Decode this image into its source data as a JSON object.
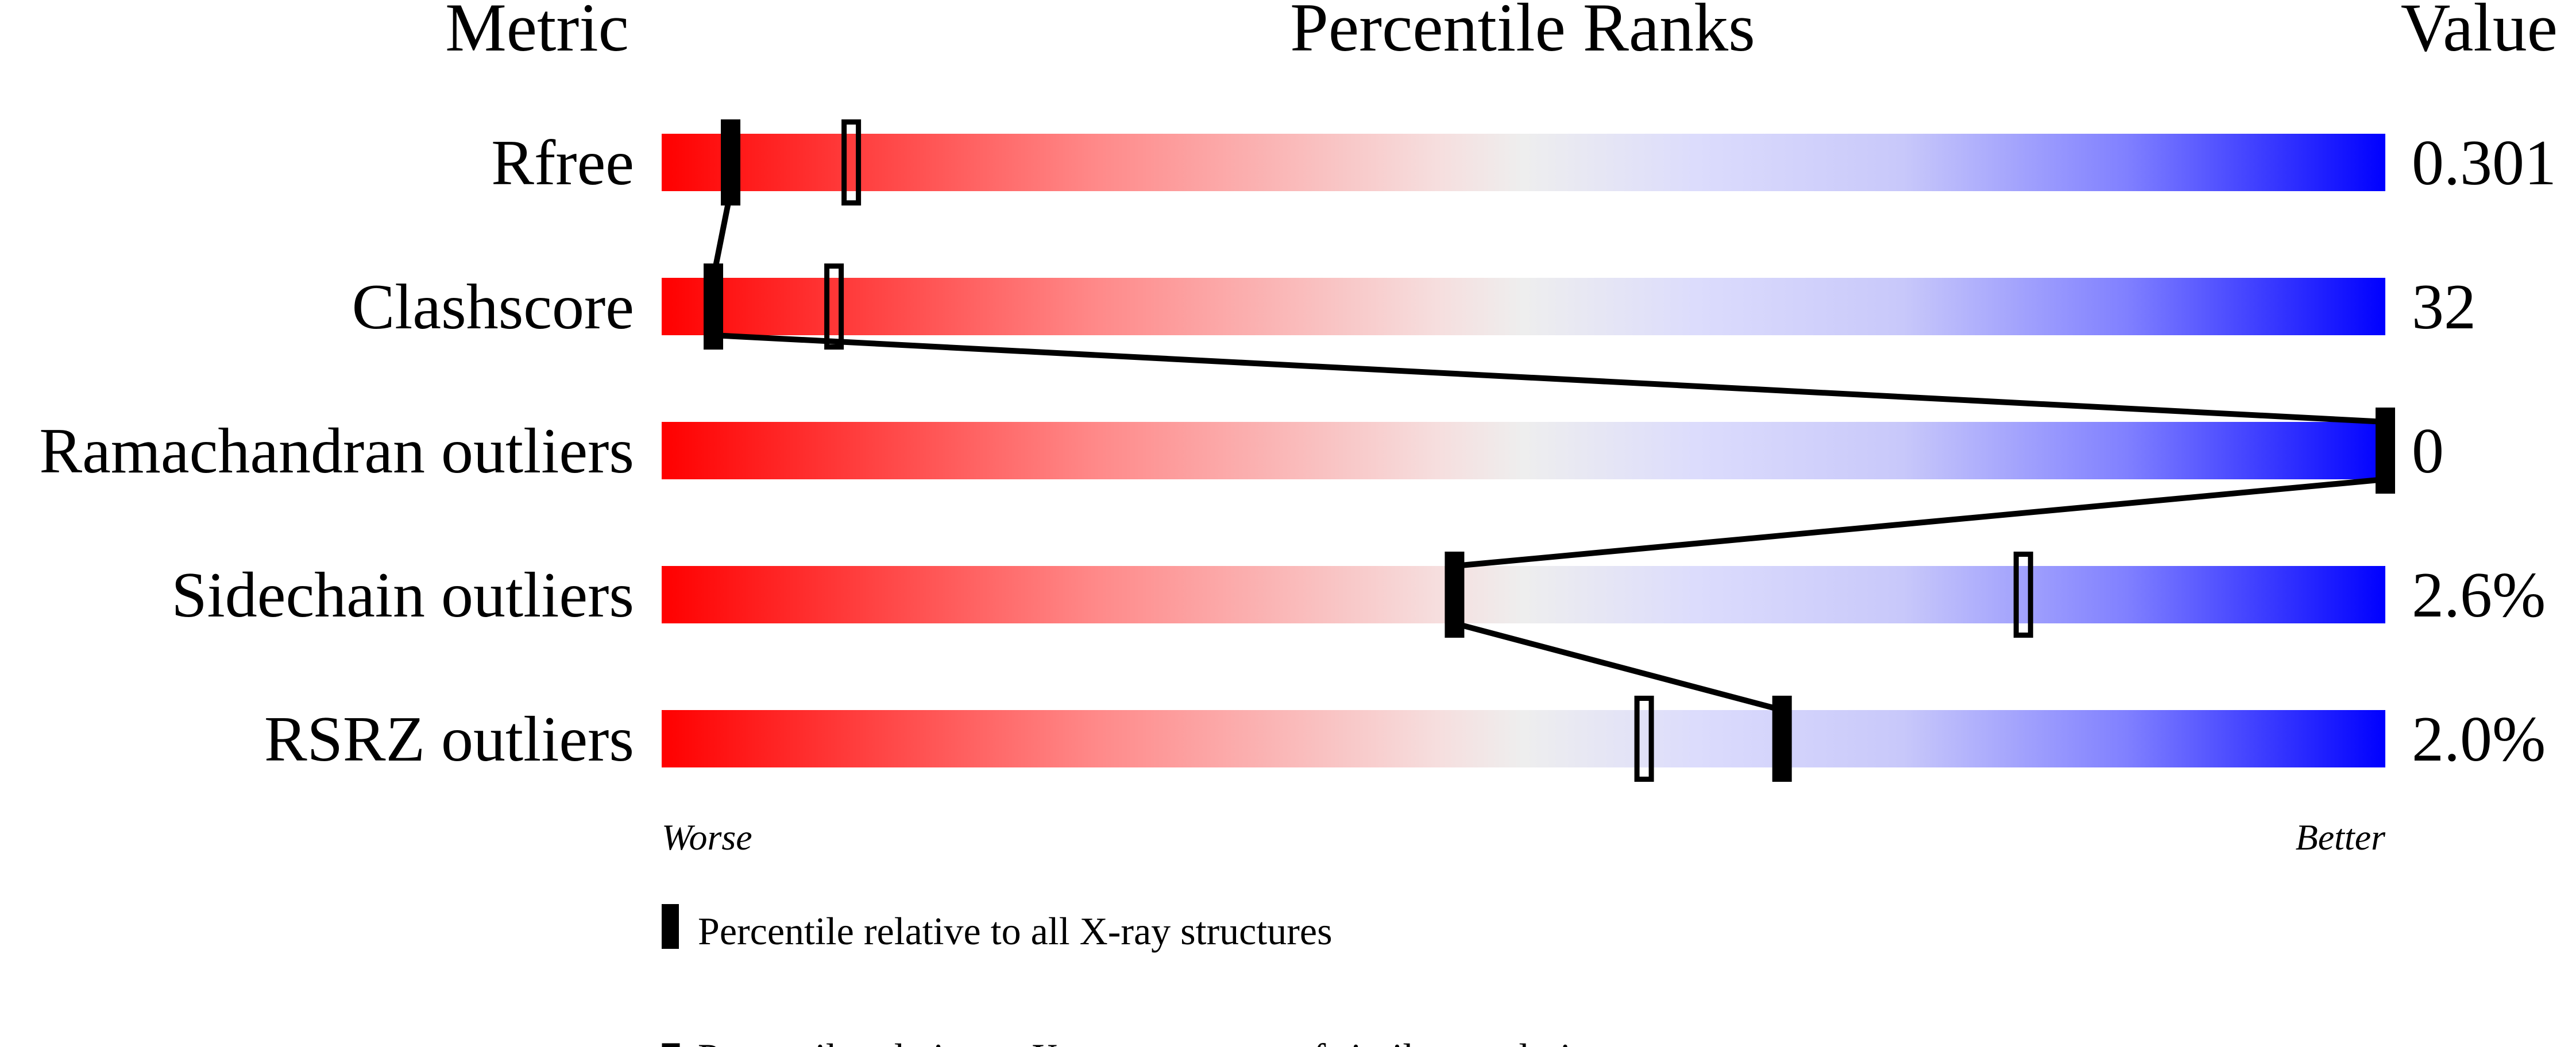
{
  "headers": {
    "metric": "Metric",
    "percentile": "Percentile Ranks",
    "value": "Value"
  },
  "axis": {
    "worse": "Worse",
    "better": "Better"
  },
  "legend": {
    "all": "Percentile relative to all X-ray structures",
    "similar": "Percentile relative to X-ray structures of similar resolution"
  },
  "colors": {
    "worse": "#ff0000",
    "middle": "#eeeeee",
    "better": "#0000ff",
    "marker": "#000000"
  },
  "chart_data": {
    "type": "bar",
    "title": "Percentile Ranks",
    "xlim": [
      0,
      100
    ],
    "categories": [
      "Rfree",
      "Clashscore",
      "Ramachandran outliers",
      "Sidechain outliers",
      "RSRZ outliers"
    ],
    "values": [
      "0.301",
      "32",
      "0",
      "2.6%",
      "2.0%"
    ],
    "series": [
      {
        "name": "Percentile relative to all X-ray structures",
        "style": "filled",
        "values": [
          4,
          3,
          100,
          46,
          65
        ]
      },
      {
        "name": "Percentile relative to X-ray structures of similar resolution",
        "style": "hollow",
        "values": [
          11,
          10,
          null,
          79,
          57
        ]
      }
    ]
  }
}
